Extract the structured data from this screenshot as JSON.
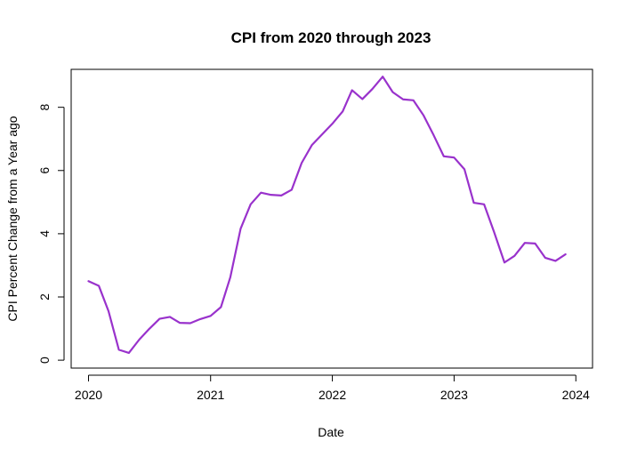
{
  "chart_data": {
    "type": "line",
    "title": "CPI from 2020 through 2023",
    "xlabel": "Date",
    "ylabel": "CPI Percent Change from a Year ago",
    "x_ticks": [
      "2020",
      "2021",
      "2022",
      "2023",
      "2024"
    ],
    "y_ticks": [
      "0",
      "2",
      "4",
      "6",
      "8"
    ],
    "xlim": [
      "2019-11-10",
      "2024-02-20"
    ],
    "ylim": [
      -0.25,
      9.2
    ],
    "grid": false,
    "legend": "none",
    "series": [
      {
        "color": "#9932CC",
        "x": [
          "2020-01-01",
          "2020-02-01",
          "2020-03-01",
          "2020-04-01",
          "2020-05-01",
          "2020-06-01",
          "2020-07-01",
          "2020-08-01",
          "2020-09-01",
          "2020-10-01",
          "2020-11-01",
          "2020-12-01",
          "2021-01-01",
          "2021-02-01",
          "2021-03-01",
          "2021-04-01",
          "2021-05-01",
          "2021-06-01",
          "2021-07-01",
          "2021-08-01",
          "2021-09-01",
          "2021-10-01",
          "2021-11-01",
          "2021-12-01",
          "2022-01-01",
          "2022-02-01",
          "2022-03-01",
          "2022-04-01",
          "2022-05-01",
          "2022-06-01",
          "2022-07-01",
          "2022-08-01",
          "2022-09-01",
          "2022-10-01",
          "2022-11-01",
          "2022-12-01",
          "2023-01-01",
          "2023-02-01",
          "2023-03-01",
          "2023-04-01",
          "2023-05-01",
          "2023-06-01",
          "2023-07-01",
          "2023-08-01",
          "2023-09-01",
          "2023-10-01",
          "2023-11-01",
          "2023-12-01"
        ],
        "y": [
          2.5,
          2.35,
          1.55,
          0.33,
          0.23,
          0.65,
          0.99,
          1.31,
          1.37,
          1.18,
          1.17,
          1.3,
          1.4,
          1.68,
          2.62,
          4.16,
          4.93,
          5.3,
          5.23,
          5.21,
          5.39,
          6.24,
          6.81,
          7.14,
          7.48,
          7.87,
          8.54,
          8.26,
          8.58,
          8.97,
          8.48,
          8.25,
          8.22,
          7.75,
          7.11,
          6.45,
          6.41,
          6.04,
          4.98,
          4.93,
          4.05,
          3.09,
          3.3,
          3.71,
          3.69,
          3.24,
          3.14,
          3.35
        ]
      }
    ]
  }
}
